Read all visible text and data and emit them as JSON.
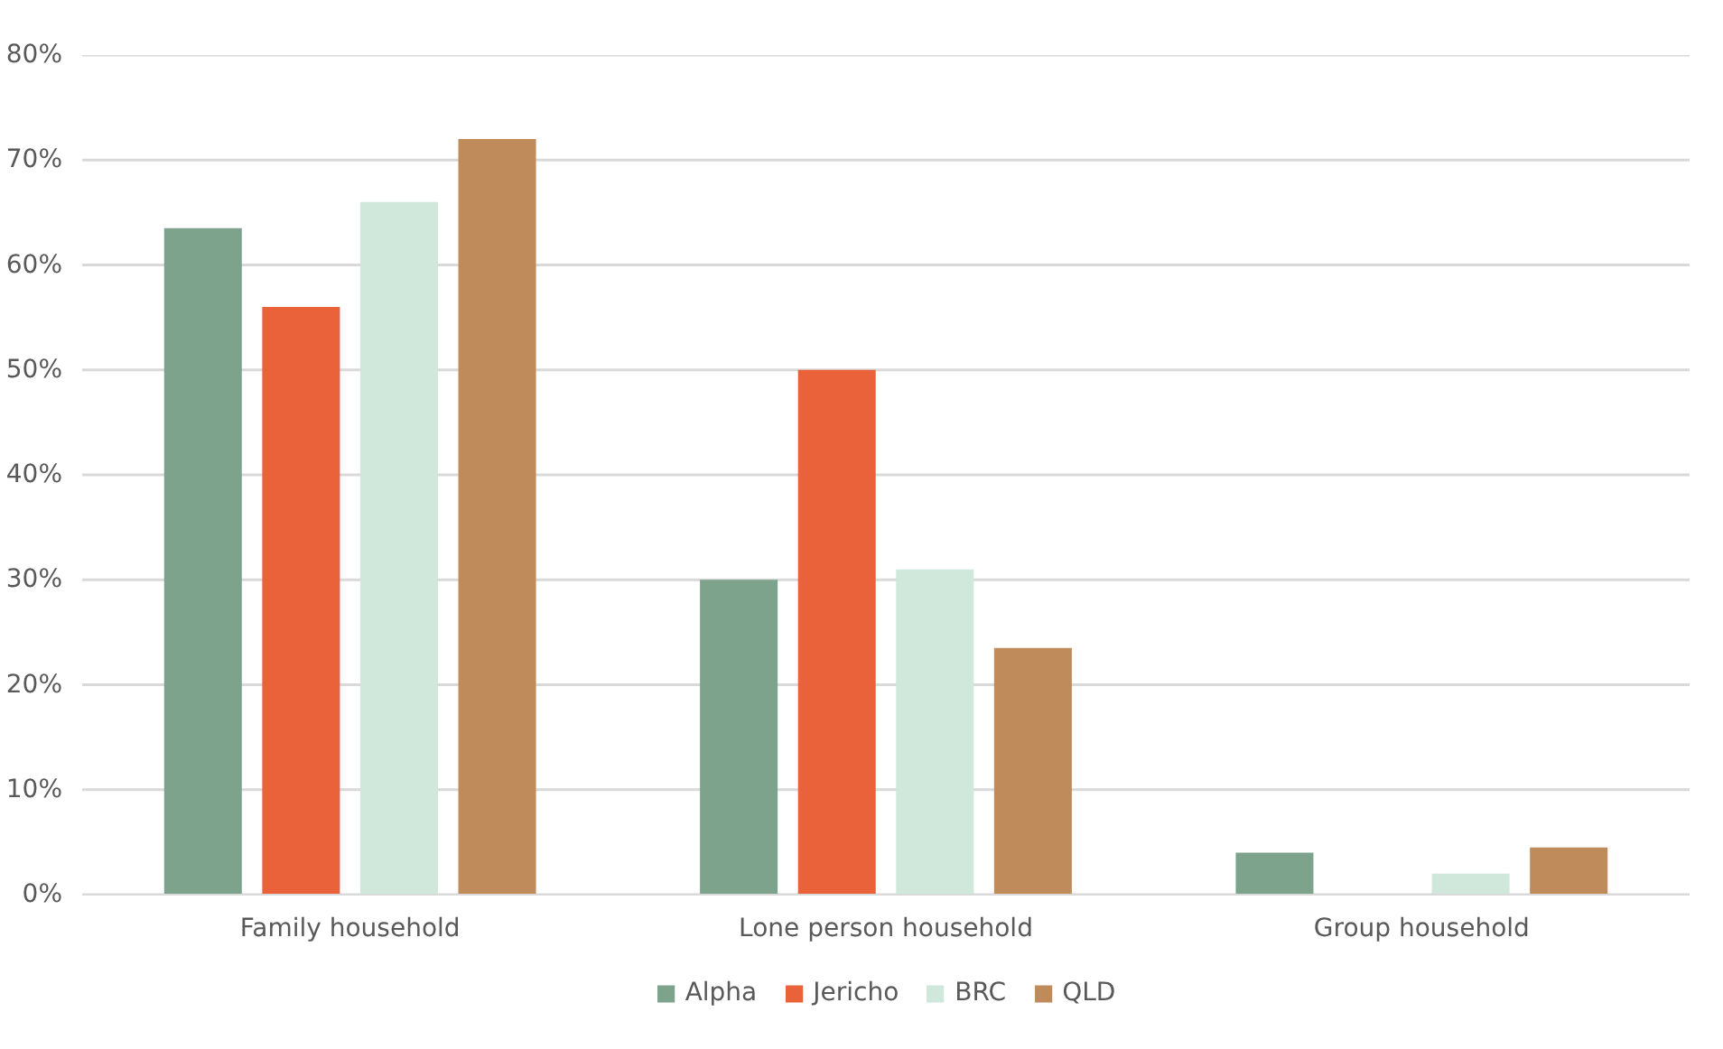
{
  "chart_data": {
    "type": "bar",
    "categories": [
      "Family household",
      "Lone person household",
      "Group household"
    ],
    "series": [
      {
        "name": "Alpha",
        "color": "#7da38d",
        "values": [
          63.5,
          30,
          4
        ]
      },
      {
        "name": "Jericho",
        "color": "#e9623a",
        "values": [
          56,
          50,
          null
        ]
      },
      {
        "name": "BRC",
        "color": "#d0e7db",
        "values": [
          66,
          31,
          2
        ]
      },
      {
        "name": "QLD",
        "color": "#c08b5a",
        "values": [
          72,
          23.5,
          4.5
        ]
      }
    ],
    "ylim": [
      0,
      80
    ],
    "yticks": [
      {
        "value": 0,
        "label": "0%"
      },
      {
        "value": 10,
        "label": "10%"
      },
      {
        "value": 20,
        "label": "20%"
      },
      {
        "value": 30,
        "label": "30%"
      },
      {
        "value": 40,
        "label": "40%"
      },
      {
        "value": 50,
        "label": "50%"
      },
      {
        "value": 60,
        "label": "60%"
      },
      {
        "value": 70,
        "label": "70%"
      },
      {
        "value": 80,
        "label": "80%"
      }
    ],
    "grid": "y",
    "legend": "bottom"
  }
}
